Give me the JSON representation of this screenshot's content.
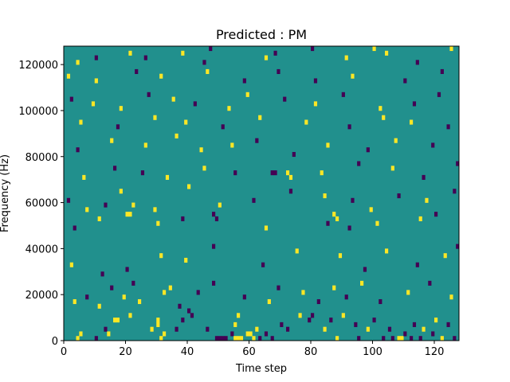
{
  "chart_data": {
    "type": "heatmap",
    "title": "Predicted : PM",
    "xlabel": "Time step",
    "ylabel": "Frequency (Hz)",
    "xlim": [
      0,
      128
    ],
    "ylim": [
      0,
      128000
    ],
    "x_ticks": [
      0,
      20,
      40,
      60,
      80,
      100,
      120
    ],
    "x_tick_labels": [
      "0",
      "20",
      "40",
      "60",
      "80",
      "100",
      "120"
    ],
    "y_ticks": [
      0,
      20000,
      40000,
      60000,
      80000,
      100000,
      120000
    ],
    "y_tick_labels": [
      "0",
      "20000",
      "40000",
      "60000",
      "80000",
      "100000",
      "120000"
    ],
    "colormap": "viridis",
    "colors": {
      "background": "#21908d",
      "low": "#440154",
      "high": "#fde725"
    },
    "grid": false,
    "n_time_steps": 128,
    "n_frequency_bins": 64,
    "bin_width_hz": 2000,
    "cells": [
      {
        "t": 4,
        "f": 0,
        "v": 1
      },
      {
        "t": 5,
        "f": 1,
        "v": 1
      },
      {
        "t": 10,
        "f": 0,
        "v": -1
      },
      {
        "t": 13,
        "f": 2,
        "v": -1
      },
      {
        "t": 14,
        "f": 1,
        "v": 1
      },
      {
        "t": 16,
        "f": 4,
        "v": 1
      },
      {
        "t": 17,
        "f": 4,
        "v": 1
      },
      {
        "t": 21,
        "f": 5,
        "v": 1
      },
      {
        "t": 28,
        "f": 2,
        "v": 1
      },
      {
        "t": 30,
        "f": 3,
        "v": 1
      },
      {
        "t": 30,
        "f": 4,
        "v": 1
      },
      {
        "t": 31,
        "f": 0,
        "v": 1
      },
      {
        "t": 32,
        "f": 1,
        "v": 1
      },
      {
        "t": 36,
        "f": 2,
        "v": -1
      },
      {
        "t": 38,
        "f": 4,
        "v": -1
      },
      {
        "t": 40,
        "f": 6,
        "v": -1
      },
      {
        "t": 41,
        "f": 5,
        "v": -1
      },
      {
        "t": 46,
        "f": 2,
        "v": -1
      },
      {
        "t": 49,
        "f": 0,
        "v": -1
      },
      {
        "t": 50,
        "f": 0,
        "v": -1
      },
      {
        "t": 51,
        "f": 0,
        "v": -1
      },
      {
        "t": 52,
        "f": 0,
        "v": -1
      },
      {
        "t": 54,
        "f": 1,
        "v": -1
      },
      {
        "t": 55,
        "f": 0,
        "v": 1
      },
      {
        "t": 56,
        "f": 0,
        "v": 1
      },
      {
        "t": 57,
        "f": 0,
        "v": 1
      },
      {
        "t": 55,
        "f": 3,
        "v": 1
      },
      {
        "t": 56,
        "f": 5,
        "v": 1
      },
      {
        "t": 59,
        "f": 1,
        "v": 1
      },
      {
        "t": 60,
        "f": 1,
        "v": 1
      },
      {
        "t": 61,
        "f": 0,
        "v": 1
      },
      {
        "t": 62,
        "f": 2,
        "v": 1
      },
      {
        "t": 63,
        "f": 0,
        "v": -1
      },
      {
        "t": 65,
        "f": 1,
        "v": -1
      },
      {
        "t": 67,
        "f": 0,
        "v": -1
      },
      {
        "t": 70,
        "f": 3,
        "v": -1
      },
      {
        "t": 72,
        "f": 2,
        "v": -1
      },
      {
        "t": 76,
        "f": 5,
        "v": 1
      },
      {
        "t": 79,
        "f": 4,
        "v": -1
      },
      {
        "t": 80,
        "f": 5,
        "v": -1
      },
      {
        "t": 84,
        "f": 2,
        "v": 1
      },
      {
        "t": 86,
        "f": 4,
        "v": -1
      },
      {
        "t": 88,
        "f": 0,
        "v": 1
      },
      {
        "t": 90,
        "f": 5,
        "v": 1
      },
      {
        "t": 94,
        "f": 3,
        "v": -1
      },
      {
        "t": 95,
        "f": 0,
        "v": -1
      },
      {
        "t": 98,
        "f": 2,
        "v": 1
      },
      {
        "t": 100,
        "f": 4,
        "v": -1
      },
      {
        "t": 103,
        "f": 0,
        "v": -1
      },
      {
        "t": 105,
        "f": 2,
        "v": -1
      },
      {
        "t": 106,
        "f": 0,
        "v": -1
      },
      {
        "t": 108,
        "f": 0,
        "v": 1
      },
      {
        "t": 109,
        "f": 0,
        "v": 1
      },
      {
        "t": 110,
        "f": 1,
        "v": -1
      },
      {
        "t": 112,
        "f": 0,
        "v": -1
      },
      {
        "t": 113,
        "f": 3,
        "v": -1
      },
      {
        "t": 115,
        "f": 0,
        "v": -1
      },
      {
        "t": 116,
        "f": 2,
        "v": 1
      },
      {
        "t": 119,
        "f": 1,
        "v": -1
      },
      {
        "t": 120,
        "f": 4,
        "v": 1
      },
      {
        "t": 122,
        "f": 0,
        "v": 1
      },
      {
        "t": 124,
        "f": 3,
        "v": -1
      },
      {
        "t": 126,
        "f": 0,
        "v": -1
      },
      {
        "t": 3,
        "f": 8,
        "v": 1
      },
      {
        "t": 7,
        "f": 9,
        "v": -1
      },
      {
        "t": 11,
        "f": 7,
        "v": 1
      },
      {
        "t": 15,
        "f": 11,
        "v": -1
      },
      {
        "t": 19,
        "f": 9,
        "v": 1
      },
      {
        "t": 22,
        "f": 12,
        "v": -1
      },
      {
        "t": 24,
        "f": 8,
        "v": 1
      },
      {
        "t": 32,
        "f": 10,
        "v": 1
      },
      {
        "t": 34,
        "f": 11,
        "v": 1
      },
      {
        "t": 37,
        "f": 7,
        "v": -1
      },
      {
        "t": 43,
        "f": 10,
        "v": -1
      },
      {
        "t": 48,
        "f": 12,
        "v": -1
      },
      {
        "t": 58,
        "f": 9,
        "v": -1
      },
      {
        "t": 66,
        "f": 8,
        "v": 1
      },
      {
        "t": 69,
        "f": 11,
        "v": -1
      },
      {
        "t": 77,
        "f": 10,
        "v": 1
      },
      {
        "t": 82,
        "f": 8,
        "v": -1
      },
      {
        "t": 87,
        "f": 11,
        "v": 1
      },
      {
        "t": 91,
        "f": 9,
        "v": -1
      },
      {
        "t": 96,
        "f": 12,
        "v": 1
      },
      {
        "t": 102,
        "f": 8,
        "v": -1
      },
      {
        "t": 111,
        "f": 10,
        "v": 1
      },
      {
        "t": 118,
        "f": 12,
        "v": -1
      },
      {
        "t": 125,
        "f": 9,
        "v": 1
      },
      {
        "t": 2,
        "f": 16,
        "v": 1
      },
      {
        "t": 12,
        "f": 14,
        "v": -1
      },
      {
        "t": 20,
        "f": 15,
        "v": -1
      },
      {
        "t": 31,
        "f": 18,
        "v": 1
      },
      {
        "t": 39,
        "f": 17,
        "v": 1
      },
      {
        "t": 48,
        "f": 20,
        "v": -1
      },
      {
        "t": 64,
        "f": 16,
        "v": -1
      },
      {
        "t": 75,
        "f": 19,
        "v": 1
      },
      {
        "t": 89,
        "f": 18,
        "v": 1
      },
      {
        "t": 97,
        "f": 15,
        "v": -1
      },
      {
        "t": 104,
        "f": 19,
        "v": 1
      },
      {
        "t": 114,
        "f": 16,
        "v": -1
      },
      {
        "t": 123,
        "f": 18,
        "v": 1
      },
      {
        "t": 127,
        "f": 20,
        "v": -1
      },
      {
        "t": 3,
        "f": 24,
        "v": -1
      },
      {
        "t": 11,
        "f": 26,
        "v": 1
      },
      {
        "t": 20,
        "f": 27,
        "v": 1
      },
      {
        "t": 21,
        "f": 27,
        "v": 1
      },
      {
        "t": 30,
        "f": 25,
        "v": 1
      },
      {
        "t": 38,
        "f": 26,
        "v": -1
      },
      {
        "t": 48,
        "f": 27,
        "v": -1
      },
      {
        "t": 49,
        "f": 26,
        "v": -1
      },
      {
        "t": 65,
        "f": 24,
        "v": 1
      },
      {
        "t": 85,
        "f": 25,
        "v": -1
      },
      {
        "t": 87,
        "f": 27,
        "v": 1
      },
      {
        "t": 88,
        "f": 26,
        "v": 1
      },
      {
        "t": 92,
        "f": 24,
        "v": -1
      },
      {
        "t": 101,
        "f": 25,
        "v": 1
      },
      {
        "t": 115,
        "f": 26,
        "v": 1
      },
      {
        "t": 120,
        "f": 27,
        "v": -1
      },
      {
        "t": 1,
        "f": 30,
        "v": -1
      },
      {
        "t": 7,
        "f": 28,
        "v": 1
      },
      {
        "t": 13,
        "f": 29,
        "v": -1
      },
      {
        "t": 18,
        "f": 32,
        "v": 1
      },
      {
        "t": 22,
        "f": 29,
        "v": 1
      },
      {
        "t": 29,
        "f": 28,
        "v": 1
      },
      {
        "t": 40,
        "f": 33,
        "v": 1
      },
      {
        "t": 50,
        "f": 29,
        "v": 1
      },
      {
        "t": 61,
        "f": 30,
        "v": -1
      },
      {
        "t": 73,
        "f": 32,
        "v": -1
      },
      {
        "t": 84,
        "f": 31,
        "v": 1
      },
      {
        "t": 93,
        "f": 30,
        "v": -1
      },
      {
        "t": 99,
        "f": 28,
        "v": 1
      },
      {
        "t": 108,
        "f": 31,
        "v": -1
      },
      {
        "t": 117,
        "f": 30,
        "v": 1
      },
      {
        "t": 126,
        "f": 32,
        "v": -1
      },
      {
        "t": 6,
        "f": 35,
        "v": 1
      },
      {
        "t": 16,
        "f": 37,
        "v": -1
      },
      {
        "t": 25,
        "f": 36,
        "v": -1
      },
      {
        "t": 33,
        "f": 35,
        "v": 1
      },
      {
        "t": 45,
        "f": 37,
        "v": 1
      },
      {
        "t": 55,
        "f": 36,
        "v": -1
      },
      {
        "t": 67,
        "f": 36,
        "v": -1
      },
      {
        "t": 68,
        "f": 36,
        "v": -1
      },
      {
        "t": 72,
        "f": 36,
        "v": 1
      },
      {
        "t": 73,
        "f": 35,
        "v": 1
      },
      {
        "t": 83,
        "f": 36,
        "v": 1
      },
      {
        "t": 95,
        "f": 38,
        "v": -1
      },
      {
        "t": 106,
        "f": 37,
        "v": 1
      },
      {
        "t": 116,
        "f": 35,
        "v": -1
      },
      {
        "t": 127,
        "f": 38,
        "v": -1
      },
      {
        "t": 4,
        "f": 41,
        "v": -1
      },
      {
        "t": 15,
        "f": 43,
        "v": 1
      },
      {
        "t": 26,
        "f": 42,
        "v": 1
      },
      {
        "t": 36,
        "f": 44,
        "v": 1
      },
      {
        "t": 44,
        "f": 41,
        "v": 1
      },
      {
        "t": 54,
        "f": 42,
        "v": 1
      },
      {
        "t": 62,
        "f": 43,
        "v": -1
      },
      {
        "t": 74,
        "f": 40,
        "v": -1
      },
      {
        "t": 85,
        "f": 42,
        "v": 1
      },
      {
        "t": 98,
        "f": 41,
        "v": -1
      },
      {
        "t": 107,
        "f": 43,
        "v": 1
      },
      {
        "t": 119,
        "f": 42,
        "v": -1
      },
      {
        "t": 5,
        "f": 47,
        "v": 1
      },
      {
        "t": 17,
        "f": 46,
        "v": -1
      },
      {
        "t": 29,
        "f": 48,
        "v": 1
      },
      {
        "t": 39,
        "f": 47,
        "v": 1
      },
      {
        "t": 51,
        "f": 46,
        "v": -1
      },
      {
        "t": 63,
        "f": 48,
        "v": 1
      },
      {
        "t": 78,
        "f": 47,
        "v": 1
      },
      {
        "t": 92,
        "f": 46,
        "v": -1
      },
      {
        "t": 103,
        "f": 48,
        "v": 1
      },
      {
        "t": 112,
        "f": 47,
        "v": 1
      },
      {
        "t": 124,
        "f": 46,
        "v": -1
      },
      {
        "t": 2,
        "f": 52,
        "v": -1
      },
      {
        "t": 9,
        "f": 51,
        "v": 1
      },
      {
        "t": 18,
        "f": 50,
        "v": 1
      },
      {
        "t": 27,
        "f": 53,
        "v": -1
      },
      {
        "t": 35,
        "f": 52,
        "v": 1
      },
      {
        "t": 42,
        "f": 51,
        "v": -1
      },
      {
        "t": 53,
        "f": 50,
        "v": 1
      },
      {
        "t": 59,
        "f": 53,
        "v": 1
      },
      {
        "t": 71,
        "f": 52,
        "v": -1
      },
      {
        "t": 81,
        "f": 51,
        "v": 1
      },
      {
        "t": 90,
        "f": 53,
        "v": -1
      },
      {
        "t": 102,
        "f": 50,
        "v": 1
      },
      {
        "t": 113,
        "f": 51,
        "v": -1
      },
      {
        "t": 121,
        "f": 53,
        "v": -1
      },
      {
        "t": 1,
        "f": 57,
        "v": 1
      },
      {
        "t": 10,
        "f": 56,
        "v": 1
      },
      {
        "t": 23,
        "f": 58,
        "v": -1
      },
      {
        "t": 31,
        "f": 57,
        "v": 1
      },
      {
        "t": 46,
        "f": 58,
        "v": 1
      },
      {
        "t": 58,
        "f": 56,
        "v": -1
      },
      {
        "t": 69,
        "f": 58,
        "v": -1
      },
      {
        "t": 81,
        "f": 56,
        "v": -1
      },
      {
        "t": 93,
        "f": 57,
        "v": 1
      },
      {
        "t": 110,
        "f": 56,
        "v": -1
      },
      {
        "t": 122,
        "f": 58,
        "v": -1
      },
      {
        "t": 4,
        "f": 60,
        "v": 1
      },
      {
        "t": 10,
        "f": 61,
        "v": -1
      },
      {
        "t": 21,
        "f": 62,
        "v": 1
      },
      {
        "t": 26,
        "f": 61,
        "v": -1
      },
      {
        "t": 38,
        "f": 62,
        "v": 1
      },
      {
        "t": 45,
        "f": 60,
        "v": -1
      },
      {
        "t": 47,
        "f": 63,
        "v": -1
      },
      {
        "t": 65,
        "f": 61,
        "v": 1
      },
      {
        "t": 68,
        "f": 62,
        "v": -1
      },
      {
        "t": 80,
        "f": 63,
        "v": -1
      },
      {
        "t": 91,
        "f": 61,
        "v": 1
      },
      {
        "t": 100,
        "f": 63,
        "v": 1
      },
      {
        "t": 104,
        "f": 62,
        "v": 1
      },
      {
        "t": 114,
        "f": 60,
        "v": -1
      },
      {
        "t": 125,
        "f": 63,
        "v": 1
      }
    ]
  }
}
